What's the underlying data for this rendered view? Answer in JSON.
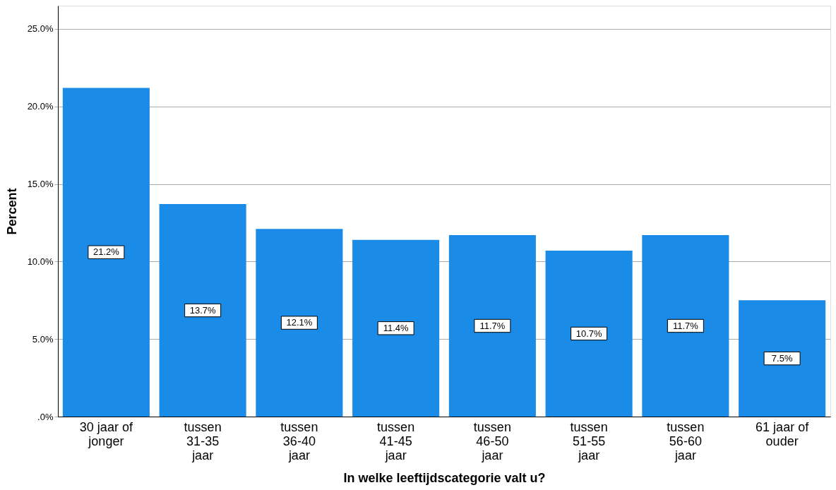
{
  "chart_data": {
    "type": "bar",
    "xlabel": "In welke leeftijdscategorie valt u?",
    "ylabel": "Percent",
    "categories": [
      "30 jaar of\njonger",
      "tussen\n31-35\njaar",
      "tussen\n36-40\njaar",
      "tussen\n41-45\njaar",
      "tussen\n46-50\njaar",
      "tussen\n51-55\njaar",
      "tussen\n56-60\njaar",
      "61 jaar of\nouder"
    ],
    "values": [
      21.2,
      13.7,
      12.1,
      11.4,
      11.7,
      10.7,
      11.7,
      7.5
    ],
    "value_labels": [
      "21.2%",
      "13.7%",
      "12.1%",
      "11.4%",
      "11.7%",
      "10.7%",
      "11.7%",
      "7.5%"
    ],
    "color": "#1a8be6",
    "ylim": [
      0,
      26.5
    ],
    "yticks": [
      {
        "value": 0,
        "label": ".0%"
      },
      {
        "value": 5,
        "label": "5.0%"
      },
      {
        "value": 10,
        "label": "10.0%"
      },
      {
        "value": 15,
        "label": "15.0%"
      },
      {
        "value": 20,
        "label": "20.0%"
      },
      {
        "value": 25,
        "label": "25.0%"
      }
    ],
    "grid": "y"
  }
}
